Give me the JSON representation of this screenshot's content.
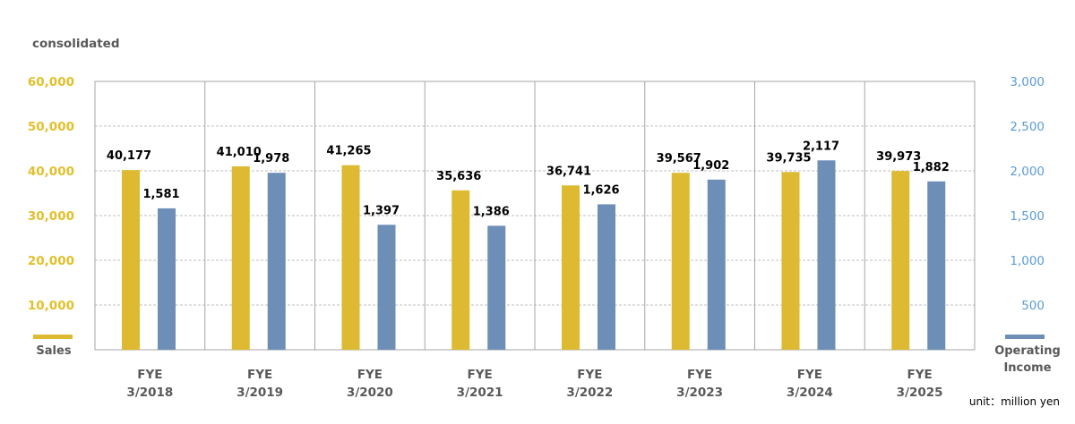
{
  "header": {
    "subtitle": "consolidated"
  },
  "unit_note": "unit：million yen",
  "legend": {
    "left_label": "Sales",
    "right_label_line1": "Operating",
    "right_label_line2": "Income"
  },
  "colors": {
    "sales": "#DDBA32",
    "operating_income": "#6D8EB7",
    "left_axis": "#E2C02D",
    "right_axis": "#5B9BD5",
    "text": "#595959",
    "value_label": "#000000",
    "grid": "#BFBFBF",
    "frame": "#A6A6A6"
  },
  "chart_data": {
    "type": "bar",
    "title": "",
    "subtitle": "consolidated",
    "categories": [
      [
        "FYE",
        "3/2018"
      ],
      [
        "FYE",
        "3/2019"
      ],
      [
        "FYE",
        "3/2020"
      ],
      [
        "FYE",
        "3/2021"
      ],
      [
        "FYE",
        "3/2022"
      ],
      [
        "FYE",
        "3/2023"
      ],
      [
        "FYE",
        "3/2024"
      ],
      [
        "FYE",
        "3/2025"
      ]
    ],
    "series": [
      {
        "name": "Sales",
        "axis": "left",
        "values": [
          40177,
          41010,
          41265,
          35636,
          36741,
          39567,
          39735,
          39973
        ],
        "labels": [
          "40,177",
          "41,010",
          "41,265",
          "35,636",
          "36,741",
          "39,567",
          "39,735",
          "39,973"
        ]
      },
      {
        "name": "Operating Income",
        "axis": "right",
        "values": [
          1581,
          1978,
          1397,
          1386,
          1626,
          1902,
          2117,
          1882
        ],
        "labels": [
          "1,581",
          "1,978",
          "1,397",
          "1,386",
          "1,626",
          "1,902",
          "2,117",
          "1,882"
        ]
      }
    ],
    "y_left": {
      "ylim": [
        0,
        60000
      ],
      "ticks": [
        10000,
        20000,
        30000,
        40000,
        50000,
        60000
      ],
      "tick_labels": [
        "10,000",
        "20,000",
        "30,000",
        "40,000",
        "50,000",
        "60,000"
      ]
    },
    "y_right": {
      "ylim": [
        0,
        3000
      ],
      "ticks": [
        500,
        1000,
        1500,
        2000,
        2500,
        3000
      ],
      "tick_labels": [
        "500",
        "1,000",
        "1,500",
        "2,000",
        "2,500",
        "3,000"
      ]
    },
    "grid": true,
    "unit": "unit：million yen"
  }
}
